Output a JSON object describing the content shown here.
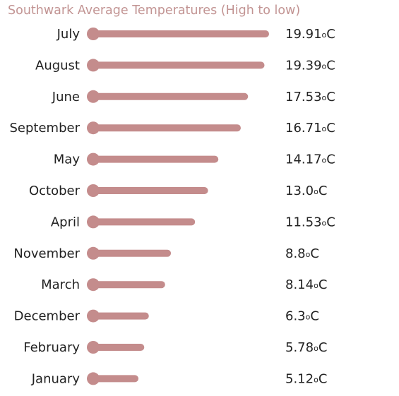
{
  "colors": {
    "bar": "#c48c8c",
    "title": "#c29493",
    "text": "#222222"
  },
  "chart_data": {
    "type": "bar",
    "orientation": "horizontal",
    "title": "Southwark Average Temperatures (High to low)",
    "xlabel": "",
    "ylabel": "",
    "unit": "°C",
    "unit_small": "o",
    "unit_letter": "C",
    "grid": false,
    "legend": "none",
    "xlim": [
      0,
      20
    ],
    "categories": [
      "July",
      "August",
      "June",
      "September",
      "May",
      "October",
      "April",
      "November",
      "March",
      "December",
      "February",
      "January"
    ],
    "values": [
      19.91,
      19.39,
      17.53,
      16.71,
      14.17,
      13.0,
      11.53,
      8.8,
      8.14,
      6.3,
      5.78,
      5.12
    ],
    "value_labels": [
      "19.91",
      "19.39",
      "17.53",
      "16.71",
      "14.17",
      "13.0",
      "11.53",
      "8.8",
      "8.14",
      "6.3",
      "5.78",
      "5.12"
    ]
  }
}
